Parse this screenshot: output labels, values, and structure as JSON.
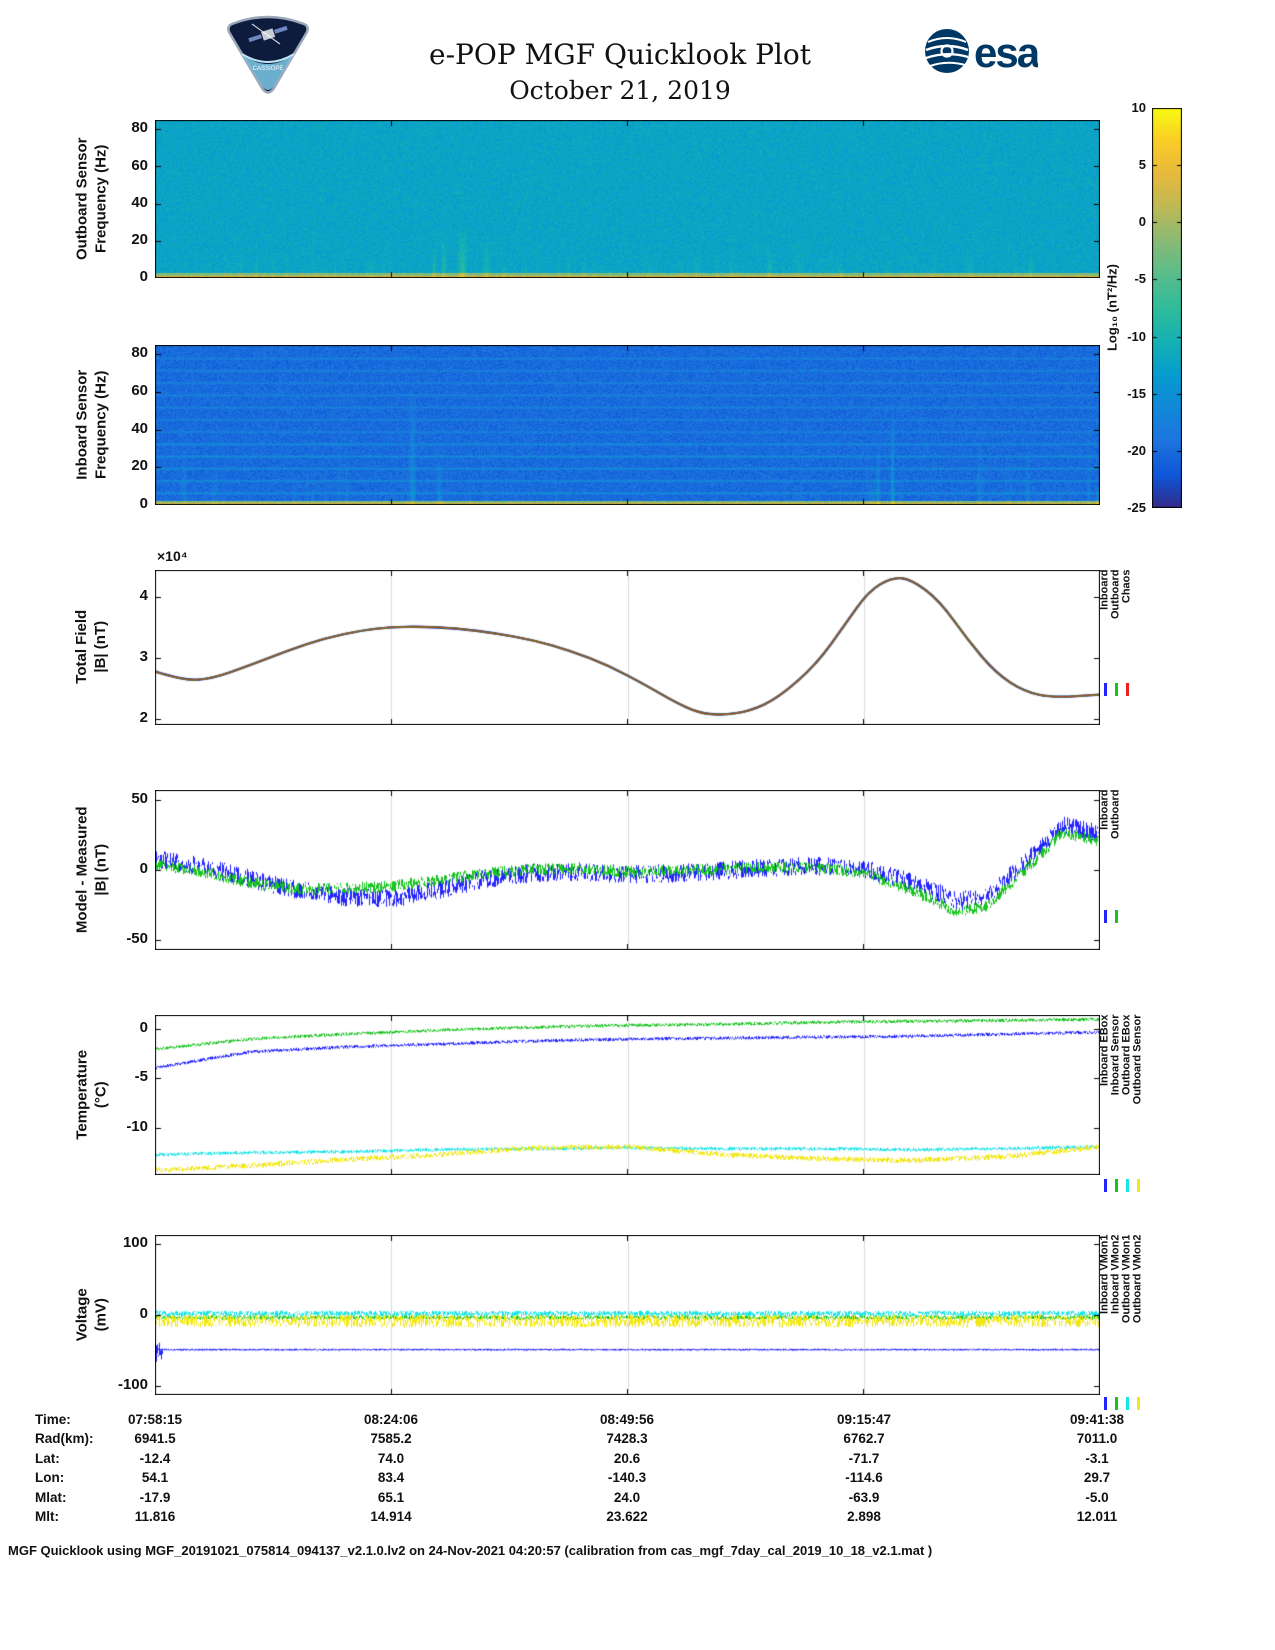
{
  "header": {
    "title": "e-POP MGF Quicklook Plot",
    "subtitle": "October 21, 2019",
    "mission_text": "CASSIOPE",
    "esa_text": "esa"
  },
  "colorbar": {
    "label": "Log₁₀ (nT²/Hz)",
    "ticks": [
      10,
      5,
      0,
      -5,
      -10,
      -15,
      -20,
      -25
    ],
    "min": -25,
    "max": 10
  },
  "ephemeris_table": {
    "rows": [
      {
        "label": "Time:",
        "values": [
          "07:58:15",
          "08:24:06",
          "08:49:56",
          "09:15:47",
          "09:41:38"
        ]
      },
      {
        "label": "Rad(km):",
        "values": [
          "6941.5",
          "7585.2",
          "7428.3",
          "6762.7",
          "7011.0"
        ]
      },
      {
        "label": "Lat:",
        "values": [
          "-12.4",
          "74.0",
          "20.6",
          "-71.7",
          "-3.1"
        ]
      },
      {
        "label": "Lon:",
        "values": [
          "54.1",
          "83.4",
          "-140.3",
          "-114.6",
          "29.7"
        ]
      },
      {
        "label": "Mlat:",
        "values": [
          "-17.9",
          "65.1",
          "24.0",
          "-63.9",
          "-5.0"
        ]
      },
      {
        "label": "Mlt:",
        "values": [
          "11.816",
          "14.914",
          "23.622",
          "2.898",
          "12.011"
        ]
      }
    ]
  },
  "footer": "MGF Quicklook using MGF_20191021_075814_094137_v2.1.0.lv2 on 24-Nov-2021 04:20:57 (calibration from cas_mgf_7day_cal_2019_10_18_v2.1.mat )",
  "chart_data": [
    {
      "id": "outboard-spectrogram",
      "type": "heatmap",
      "ylabel_lines": [
        "Outboard Sensor",
        "Frequency (Hz)"
      ],
      "ylim": [
        0,
        85
      ],
      "yticks": [
        0,
        20,
        40,
        60,
        80
      ],
      "value_units": "Log10 (nT2/Hz)",
      "background_level": -12.3,
      "noise_amp": 1.6,
      "bottom_band": {
        "freq_max": 3.2,
        "level": -2.0,
        "noise": 2.5,
        "bright": 5.0
      },
      "harmonic_lines": [],
      "line_boost": 0,
      "streaks": {
        "count": 100,
        "max_freq": 18,
        "amp": 1.4,
        "major": [
          {
            "x": 0.295,
            "freq_max": 18,
            "amp": 3.0
          },
          {
            "x": 0.305,
            "freq_max": 26,
            "amp": 4.5
          },
          {
            "x": 0.325,
            "freq_max": 30,
            "amp": 5.0
          },
          {
            "x": 0.35,
            "freq_max": 22,
            "amp": 3.5
          }
        ]
      },
      "seed": 7
    },
    {
      "id": "inboard-spectrogram",
      "type": "heatmap",
      "ylabel_lines": [
        "Inboard Sensor",
        "Frequency (Hz)"
      ],
      "ylim": [
        0,
        85
      ],
      "yticks": [
        0,
        20,
        40,
        60,
        80
      ],
      "value_units": "Log10 (nT2/Hz)",
      "background_level": -20.0,
      "noise_amp": 2.0,
      "bottom_band": {
        "freq_max": 2.6,
        "level": -2.2,
        "noise": 2.2,
        "bright": 4.5
      },
      "harmonic_lines": [
        6.5,
        13,
        19.5,
        26,
        32.5,
        39,
        45.5,
        52,
        58.5,
        65,
        71.5,
        78
      ],
      "line_boost": 3.6,
      "streaks": {
        "count": 60,
        "max_freq": 45,
        "amp": 1.6,
        "major": [
          {
            "x": 0.272,
            "freq_max": 66,
            "amp": 5.0
          },
          {
            "x": 0.3,
            "freq_max": 30,
            "amp": 4.0
          },
          {
            "x": 0.765,
            "freq_max": 40,
            "amp": 4.0
          },
          {
            "x": 0.78,
            "freq_max": 56,
            "amp": 6.0
          },
          {
            "x": 0.997,
            "freq_max": 12,
            "amp": 6.0
          }
        ]
      },
      "seed": 13
    },
    {
      "id": "total-field",
      "type": "line",
      "ylabel_lines": [
        "Total Field",
        "|B| (nT)"
      ],
      "y_scale_label": "×10⁴",
      "ylim": [
        1.9,
        4.45
      ],
      "yticks": [
        2,
        3,
        4
      ],
      "grid": true,
      "seed": 21,
      "legend": {
        "labels": [
          "Inboard",
          "Outboard",
          "Chaos"
        ],
        "colors": [
          "#2424ff",
          "#16c41e",
          "#e8231c"
        ],
        "marker_offset": -42
      },
      "x": [
        0,
        0.03,
        0.06,
        0.1,
        0.14,
        0.18,
        0.22,
        0.25,
        0.28,
        0.32,
        0.36,
        0.4,
        0.44,
        0.48,
        0.52,
        0.55,
        0.575,
        0.6,
        0.63,
        0.66,
        0.7,
        0.73,
        0.755,
        0.78,
        0.8,
        0.83,
        0.86,
        0.89,
        0.92,
        0.95,
        1.0
      ],
      "series": [
        {
          "name": "Inboard",
          "color": "#2020d8",
          "width": 2.4,
          "noise": 0,
          "smooth": true,
          "y": [
            2.78,
            2.63,
            2.66,
            2.88,
            3.12,
            3.33,
            3.46,
            3.51,
            3.52,
            3.49,
            3.41,
            3.3,
            3.12,
            2.88,
            2.55,
            2.28,
            2.1,
            2.06,
            2.13,
            2.35,
            2.9,
            3.55,
            4.1,
            4.33,
            4.3,
            3.95,
            3.3,
            2.75,
            2.45,
            2.35,
            2.4
          ]
        },
        {
          "name": "Outboard",
          "color": "#17a81e",
          "width": 1.8,
          "noise": 0,
          "smooth": true,
          "y": [
            2.78,
            2.63,
            2.66,
            2.88,
            3.12,
            3.33,
            3.46,
            3.51,
            3.52,
            3.49,
            3.41,
            3.3,
            3.12,
            2.88,
            2.55,
            2.28,
            2.1,
            2.06,
            2.13,
            2.35,
            2.9,
            3.55,
            4.1,
            4.33,
            4.3,
            3.95,
            3.3,
            2.75,
            2.45,
            2.35,
            2.4
          ]
        },
        {
          "name": "Chaos",
          "color": "#b2461f",
          "width": 1.3,
          "noise": 0,
          "smooth": true,
          "y": [
            2.78,
            2.63,
            2.66,
            2.88,
            3.12,
            3.33,
            3.46,
            3.51,
            3.52,
            3.49,
            3.41,
            3.3,
            3.12,
            2.88,
            2.55,
            2.28,
            2.1,
            2.06,
            2.13,
            2.35,
            2.9,
            3.55,
            4.1,
            4.33,
            4.3,
            3.95,
            3.3,
            2.75,
            2.45,
            2.35,
            2.4
          ]
        }
      ]
    },
    {
      "id": "model-measured",
      "type": "line",
      "ylabel_lines": [
        "Model - Measured",
        "|B| (nT)"
      ],
      "ylim": [
        -57,
        57
      ],
      "yticks": [
        -50,
        0,
        50
      ],
      "grid": true,
      "seed": 33,
      "legend": {
        "labels": [
          "Inboard",
          "Outboard"
        ],
        "colors": [
          "#2424ff",
          "#16c41e"
        ],
        "marker_offset": -40
      },
      "x": [
        0,
        0.05,
        0.1,
        0.15,
        0.2,
        0.25,
        0.3,
        0.35,
        0.4,
        0.45,
        0.5,
        0.55,
        0.6,
        0.65,
        0.7,
        0.75,
        0.8,
        0.85,
        0.88,
        0.92,
        0.96,
        1.0
      ],
      "series": [
        {
          "name": "Inboard",
          "color": "#2424ff",
          "width": 1,
          "noise": 6.5,
          "y": [
            8,
            3,
            -6,
            -14,
            -19,
            -20,
            -14,
            -6,
            -2,
            -1,
            -3,
            -2,
            0,
            2,
            3,
            1,
            -8,
            -22,
            -18,
            5,
            32,
            26
          ]
        },
        {
          "name": "Outboard",
          "color": "#16c41e",
          "width": 1,
          "noise": 4.0,
          "y": [
            4,
            -1,
            -9,
            -13,
            -13,
            -11,
            -7,
            -2,
            1,
            1,
            -1,
            0,
            1,
            2,
            2,
            -2,
            -14,
            -30,
            -25,
            0,
            27,
            21
          ]
        }
      ]
    },
    {
      "id": "temperature",
      "type": "line",
      "ylabel_lines": [
        "Temperature",
        "(°C)"
      ],
      "ylim": [
        -14.8,
        1.4
      ],
      "yticks": [
        0,
        -5,
        -10
      ],
      "grid": true,
      "seed": 44,
      "legend": {
        "labels": [
          "Inboard EBox",
          "Inboard Sensor",
          "Outboard EBox",
          "Outboard Sensor"
        ],
        "colors": [
          "#2424ff",
          "#16c41e",
          "#17e4e6",
          "#f2e713"
        ],
        "marker_offset": 4
      },
      "x": [
        0,
        0.1,
        0.2,
        0.3,
        0.4,
        0.5,
        0.6,
        0.7,
        0.8,
        0.9,
        1.0
      ],
      "draw_order": [
        2,
        3,
        0,
        1
      ],
      "series": [
        {
          "name": "Inboard EBox",
          "color": "#2424ff",
          "width": 1,
          "noise": 0.14,
          "y": [
            -3.9,
            -2.3,
            -1.8,
            -1.5,
            -1.2,
            -1.0,
            -0.9,
            -0.8,
            -0.7,
            -0.5,
            -0.3
          ]
        },
        {
          "name": "Inboard Sensor",
          "color": "#16c41e",
          "width": 1,
          "noise": 0.14,
          "y": [
            -2.0,
            -1.0,
            -0.5,
            -0.1,
            0.2,
            0.4,
            0.5,
            0.7,
            0.8,
            0.9,
            1.0
          ]
        },
        {
          "name": "Outboard EBox",
          "color": "#17e4e6",
          "width": 1,
          "noise": 0.15,
          "y": [
            -12.7,
            -12.5,
            -12.4,
            -12.2,
            -12.1,
            -12.0,
            -12.1,
            -12.1,
            -12.2,
            -12.1,
            -11.9
          ]
        },
        {
          "name": "Outboard Sensor",
          "color": "#f2e713",
          "width": 1,
          "noise": 0.25,
          "y": [
            -14.3,
            -13.8,
            -13.2,
            -12.7,
            -12.0,
            -11.9,
            -12.7,
            -13.1,
            -13.3,
            -12.9,
            -11.9
          ]
        }
      ]
    },
    {
      "id": "voltage",
      "type": "line",
      "ylabel_lines": [
        "Voltage",
        "(mV)"
      ],
      "ylim": [
        -112,
        112
      ],
      "yticks": [
        -100,
        0,
        100
      ],
      "grid": true,
      "seed": 55,
      "legend": {
        "labels": [
          "Inboard VMon1",
          "Inboard VMon2",
          "Outboard VMon1",
          "Outboard VMon2"
        ],
        "colors": [
          "#2424ff",
          "#16c41e",
          "#17e4e6",
          "#f2e713"
        ],
        "marker_offset": 2
      },
      "x": [
        0,
        1
      ],
      "draw_order": [
        2,
        3,
        4,
        1,
        0
      ],
      "series": [
        {
          "name": "Inboard VMon1",
          "color": "#2424ff",
          "width": 1,
          "noise": 0.9,
          "x": [
            0,
            1
          ],
          "y": [
            -48,
            -48
          ]
        },
        {
          "name": "Inboard VMon1 (startup)",
          "color": "#2424ff",
          "width": 1,
          "noise": 14,
          "x": [
            0,
            0.007
          ],
          "y": [
            -55,
            -49
          ]
        },
        {
          "name": "Inboard VMon2",
          "color": "#16c41e",
          "width": 1,
          "noise": 2.5,
          "x": [
            0,
            1
          ],
          "y": [
            -3,
            -3
          ]
        },
        {
          "name": "Outboard VMon1",
          "color": "#17e4e6",
          "width": 1,
          "noise": 3.5,
          "x": [
            0,
            1
          ],
          "y": [
            2.5,
            2.5
          ]
        },
        {
          "name": "Outboard VMon2",
          "color": "#f2e713",
          "width": 1,
          "noise": 8.5,
          "x": [
            0,
            1
          ],
          "y": [
            -8,
            -8
          ]
        }
      ]
    }
  ]
}
